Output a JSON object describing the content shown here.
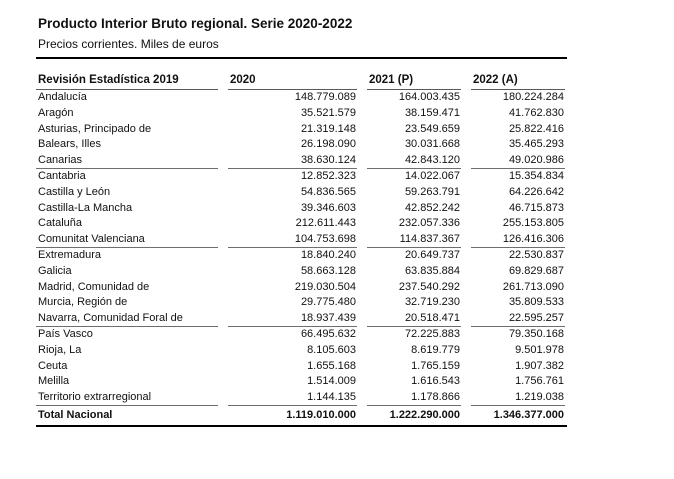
{
  "title": "Producto Interior Bruto regional. Serie 2020-2022",
  "subtitle": "Precios corrientes. Miles de euros",
  "colors": {
    "text": "#111111",
    "heavy_rule": "#000000",
    "light_rule": "#6e6e6e"
  },
  "table": {
    "columns": [
      "Revisión Estadística 2019",
      "2020",
      "2021 (P)",
      "2022 (A)"
    ],
    "group_size": 5,
    "rows": [
      {
        "label": "Andalucía",
        "values": [
          "148.779.089",
          "164.003.435",
          "180.224.284"
        ]
      },
      {
        "label": "Aragón",
        "values": [
          "35.521.579",
          "38.159.471",
          "41.762.830"
        ]
      },
      {
        "label": "Asturias, Principado de",
        "values": [
          "21.319.148",
          "23.549.659",
          "25.822.416"
        ]
      },
      {
        "label": "Balears, Illes",
        "values": [
          "26.198.090",
          "30.031.668",
          "35.465.293"
        ]
      },
      {
        "label": "Canarias",
        "values": [
          "38.630.124",
          "42.843.120",
          "49.020.986"
        ]
      },
      {
        "label": "Cantabria",
        "values": [
          "12.852.323",
          "14.022.067",
          "15.354.834"
        ]
      },
      {
        "label": "Castilla y León",
        "values": [
          "54.836.565",
          "59.263.791",
          "64.226.642"
        ]
      },
      {
        "label": "Castilla-La Mancha",
        "values": [
          "39.346.603",
          "42.852.242",
          "46.715.873"
        ]
      },
      {
        "label": "Cataluña",
        "values": [
          "212.611.443",
          "232.057.336",
          "255.153.805"
        ]
      },
      {
        "label": "Comunitat Valenciana",
        "values": [
          "104.753.698",
          "114.837.367",
          "126.416.306"
        ]
      },
      {
        "label": "Extremadura",
        "values": [
          "18.840.240",
          "20.649.737",
          "22.530.837"
        ]
      },
      {
        "label": "Galicia",
        "values": [
          "58.663.128",
          "63.835.884",
          "69.829.687"
        ]
      },
      {
        "label": "Madrid, Comunidad de",
        "values": [
          "219.030.504",
          "237.540.292",
          "261.713.090"
        ]
      },
      {
        "label": "Murcia, Región de",
        "values": [
          "29.775.480",
          "32.719.230",
          "35.809.533"
        ]
      },
      {
        "label": "Navarra, Comunidad Foral de",
        "values": [
          "18.937.439",
          "20.518.471",
          "22.595.257"
        ]
      },
      {
        "label": "País Vasco",
        "values": [
          "66.495.632",
          "72.225.883",
          "79.350.168"
        ]
      },
      {
        "label": "Rioja, La",
        "values": [
          "8.105.603",
          "8.619.779",
          "9.501.978"
        ]
      },
      {
        "label": "Ceuta",
        "values": [
          "1.655.168",
          "1.765.159",
          "1.907.382"
        ]
      },
      {
        "label": "Melilla",
        "values": [
          "1.514.009",
          "1.616.543",
          "1.756.761"
        ]
      },
      {
        "label": "Territorio extrarregional",
        "values": [
          "1.144.135",
          "1.178.866",
          "1.219.038"
        ]
      }
    ],
    "total": {
      "label": "Total Nacional",
      "values": [
        "1.119.010.000",
        "1.222.290.000",
        "1.346.377.000"
      ]
    }
  }
}
